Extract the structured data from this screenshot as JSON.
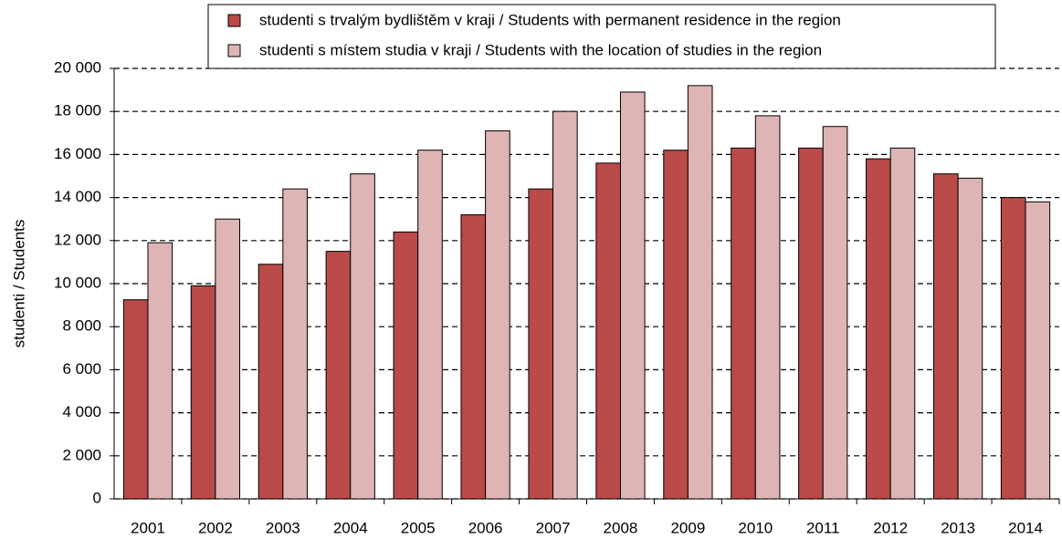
{
  "chart_data": {
    "type": "bar",
    "y_label": "studenti / Students",
    "categories": [
      "2001",
      "2002",
      "2003",
      "2004",
      "2005",
      "2006",
      "2007",
      "2008",
      "2009",
      "2010",
      "2011",
      "2012",
      "2013",
      "2014"
    ],
    "series": [
      {
        "name": "studenti s trvalým bydlištěm v kraji / Students with permanent residence in the region",
        "color": "#b94a48",
        "values": [
          9250,
          9900,
          10900,
          11500,
          12400,
          13200,
          14400,
          15600,
          16200,
          16300,
          16300,
          15800,
          15100,
          14000
        ]
      },
      {
        "name": "studenti s místem studia v kraji / Students with the location of studies in the region",
        "color": "#dfb4b4",
        "values": [
          11900,
          13000,
          14400,
          15100,
          16200,
          17100,
          18000,
          18900,
          19200,
          17800,
          17300,
          16300,
          14900,
          13800
        ]
      }
    ],
    "ylim": [
      0,
      20000
    ],
    "yticks": [
      0,
      {
        "value": 2000,
        "label": "2 000"
      },
      {
        "value": 4000,
        "label": "4 000"
      },
      {
        "value": 6000,
        "label": "6 000"
      },
      {
        "value": 8000,
        "label": "8 000"
      },
      {
        "value": 10000,
        "label": "10 000"
      },
      {
        "value": 12000,
        "label": "12 000"
      },
      {
        "value": 14000,
        "label": "14 000"
      },
      {
        "value": 16000,
        "label": "16 000"
      },
      {
        "value": 18000,
        "label": "18 000"
      },
      {
        "value": 20000,
        "label": "20 000"
      }
    ],
    "grid": true
  }
}
